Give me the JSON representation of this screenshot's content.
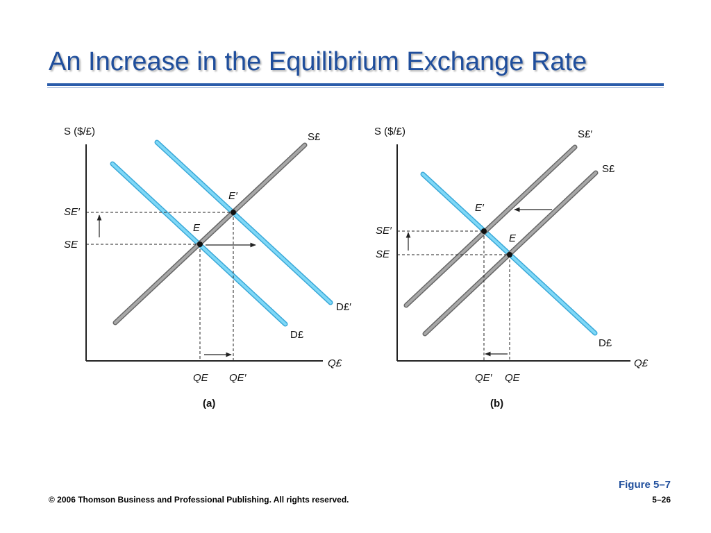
{
  "title": "An Increase in the Equilibrium Exchange Rate",
  "figure_label": "Figure 5–7",
  "footer": {
    "copyright": "© 2006 Thomson Business and Professional Publishing. All rights reserved.",
    "page": "5–26"
  },
  "colors": {
    "title": "#1f4e9c",
    "demand_line": "#55c8f0",
    "supply_line": "#8c8c8c"
  },
  "panel_a": {
    "caption": "(a)",
    "y_axis": "S ($/£)",
    "x_axis": "Q£",
    "supply": "S£",
    "demand": "D£",
    "demand_new": "D£′",
    "eq": "E",
    "eq_new": "E′",
    "price": "SE",
    "price_new": "SE′",
    "qty": "QE",
    "qty_new": "QE′"
  },
  "panel_b": {
    "caption": "(b)",
    "y_axis": "S ($/£)",
    "x_axis": "Q£",
    "supply": "S£",
    "supply_new": "S£′",
    "demand": "D£",
    "eq": "E",
    "eq_new": "E′",
    "price": "SE",
    "price_new": "SE′",
    "qty": "QE",
    "qty_new": "QE′"
  }
}
